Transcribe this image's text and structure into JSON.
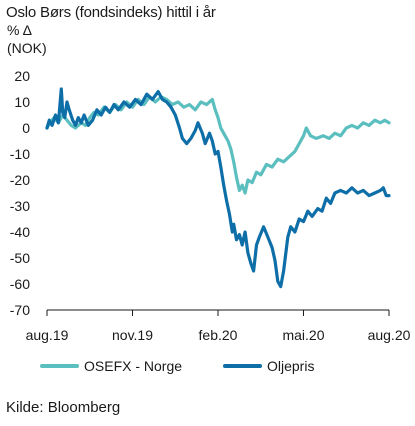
{
  "title": "Oslo Børs (fondsindeks) hittil i år",
  "unit_line1": "% Δ",
  "unit_line2": "(NOK)",
  "source": "Kilde: Bloomberg",
  "chart_data": {
    "type": "line",
    "xlim": [
      0,
      12
    ],
    "ylim": [
      -70,
      20
    ],
    "y_ticks": [
      20,
      10,
      0,
      -10,
      -20,
      -30,
      -40,
      -50,
      -60,
      -70
    ],
    "x_tick_labels": [
      {
        "x": 0,
        "label": "aug.19"
      },
      {
        "x": 3,
        "label": "nov.19"
      },
      {
        "x": 6,
        "label": "feb.20"
      },
      {
        "x": 9,
        "label": "mai.20"
      },
      {
        "x": 12,
        "label": "aug.20"
      }
    ],
    "grid": false,
    "legend_position": "bottom",
    "series": [
      {
        "name": "OSEFX - Norge",
        "color": "#5bbfbf",
        "points": [
          [
            0.0,
            0
          ],
          [
            0.1,
            2
          ],
          [
            0.25,
            4
          ],
          [
            0.4,
            2
          ],
          [
            0.55,
            5
          ],
          [
            0.7,
            3
          ],
          [
            0.85,
            1
          ],
          [
            1.0,
            0
          ],
          [
            1.2,
            2
          ],
          [
            1.35,
            1
          ],
          [
            1.5,
            4
          ],
          [
            1.65,
            6
          ],
          [
            1.8,
            5
          ],
          [
            2.0,
            8
          ],
          [
            2.2,
            6
          ],
          [
            2.4,
            9
          ],
          [
            2.6,
            7
          ],
          [
            2.8,
            10
          ],
          [
            3.0,
            8
          ],
          [
            3.2,
            11
          ],
          [
            3.4,
            9
          ],
          [
            3.6,
            12
          ],
          [
            3.8,
            10
          ],
          [
            4.0,
            12
          ],
          [
            4.2,
            11
          ],
          [
            4.4,
            9
          ],
          [
            4.6,
            10
          ],
          [
            4.8,
            8
          ],
          [
            5.0,
            9
          ],
          [
            5.2,
            7
          ],
          [
            5.4,
            10
          ],
          [
            5.6,
            9
          ],
          [
            5.8,
            11
          ],
          [
            5.9,
            7
          ],
          [
            6.0,
            4
          ],
          [
            6.1,
            0
          ],
          [
            6.25,
            -3
          ],
          [
            6.35,
            -5
          ],
          [
            6.45,
            -8
          ],
          [
            6.55,
            -13
          ],
          [
            6.65,
            -19
          ],
          [
            6.75,
            -24
          ],
          [
            6.85,
            -22
          ],
          [
            6.95,
            -25
          ],
          [
            7.05,
            -20
          ],
          [
            7.2,
            -21
          ],
          [
            7.35,
            -17
          ],
          [
            7.5,
            -18
          ],
          [
            7.7,
            -14
          ],
          [
            7.9,
            -15
          ],
          [
            8.1,
            -12
          ],
          [
            8.3,
            -13
          ],
          [
            8.5,
            -11
          ],
          [
            8.7,
            -9
          ],
          [
            8.85,
            -6
          ],
          [
            9.0,
            -3
          ],
          [
            9.1,
            0
          ],
          [
            9.25,
            -3
          ],
          [
            9.45,
            -4
          ],
          [
            9.7,
            -3
          ],
          [
            9.9,
            -4
          ],
          [
            10.1,
            -2
          ],
          [
            10.3,
            -3
          ],
          [
            10.5,
            0
          ],
          [
            10.7,
            1
          ],
          [
            10.9,
            0
          ],
          [
            11.1,
            2
          ],
          [
            11.3,
            1
          ],
          [
            11.5,
            3
          ],
          [
            11.7,
            2
          ],
          [
            11.85,
            3
          ],
          [
            12.0,
            2
          ]
        ]
      },
      {
        "name": "Oljepris",
        "color": "#0e6ea8",
        "points": [
          [
            0.0,
            0
          ],
          [
            0.08,
            3
          ],
          [
            0.18,
            1
          ],
          [
            0.3,
            5
          ],
          [
            0.4,
            2
          ],
          [
            0.5,
            15
          ],
          [
            0.55,
            6
          ],
          [
            0.62,
            4
          ],
          [
            0.7,
            10
          ],
          [
            0.78,
            7
          ],
          [
            0.9,
            3
          ],
          [
            1.0,
            1
          ],
          [
            1.1,
            4
          ],
          [
            1.2,
            2
          ],
          [
            1.3,
            5
          ],
          [
            1.45,
            1
          ],
          [
            1.6,
            3
          ],
          [
            1.75,
            7
          ],
          [
            1.9,
            5
          ],
          [
            2.05,
            8
          ],
          [
            2.2,
            6
          ],
          [
            2.35,
            9
          ],
          [
            2.5,
            7
          ],
          [
            2.7,
            10
          ],
          [
            2.9,
            8
          ],
          [
            3.1,
            11
          ],
          [
            3.3,
            9
          ],
          [
            3.5,
            13
          ],
          [
            3.7,
            11
          ],
          [
            3.9,
            14
          ],
          [
            4.05,
            11
          ],
          [
            4.2,
            10
          ],
          [
            4.35,
            8
          ],
          [
            4.5,
            5
          ],
          [
            4.65,
            0
          ],
          [
            4.75,
            -4
          ],
          [
            4.9,
            -6
          ],
          [
            5.05,
            -4
          ],
          [
            5.2,
            -1
          ],
          [
            5.3,
            2
          ],
          [
            5.45,
            -2
          ],
          [
            5.55,
            -6
          ],
          [
            5.7,
            -2
          ],
          [
            5.8,
            -5
          ],
          [
            5.9,
            -10
          ],
          [
            6.0,
            -9
          ],
          [
            6.1,
            -15
          ],
          [
            6.2,
            -22
          ],
          [
            6.3,
            -28
          ],
          [
            6.4,
            -33
          ],
          [
            6.5,
            -40
          ],
          [
            6.55,
            -37
          ],
          [
            6.65,
            -43
          ],
          [
            6.75,
            -41
          ],
          [
            6.85,
            -45
          ],
          [
            6.95,
            -40
          ],
          [
            7.05,
            -48
          ],
          [
            7.15,
            -52
          ],
          [
            7.25,
            -55
          ],
          [
            7.35,
            -45
          ],
          [
            7.45,
            -42
          ],
          [
            7.6,
            -38
          ],
          [
            7.75,
            -42
          ],
          [
            7.9,
            -46
          ],
          [
            8.0,
            -51
          ],
          [
            8.1,
            -59
          ],
          [
            8.2,
            -61
          ],
          [
            8.3,
            -55
          ],
          [
            8.45,
            -42
          ],
          [
            8.55,
            -38
          ],
          [
            8.7,
            -40
          ],
          [
            8.85,
            -35
          ],
          [
            9.0,
            -36
          ],
          [
            9.15,
            -32
          ],
          [
            9.3,
            -34
          ],
          [
            9.5,
            -31
          ],
          [
            9.65,
            -32
          ],
          [
            9.8,
            -27
          ],
          [
            9.95,
            -29
          ],
          [
            10.1,
            -25
          ],
          [
            10.3,
            -24
          ],
          [
            10.5,
            -25
          ],
          [
            10.7,
            -23
          ],
          [
            10.9,
            -25
          ],
          [
            11.1,
            -24
          ],
          [
            11.3,
            -26
          ],
          [
            11.5,
            -25
          ],
          [
            11.7,
            -24
          ],
          [
            11.8,
            -23
          ],
          [
            11.9,
            -26
          ],
          [
            12.0,
            -26
          ]
        ]
      }
    ]
  }
}
